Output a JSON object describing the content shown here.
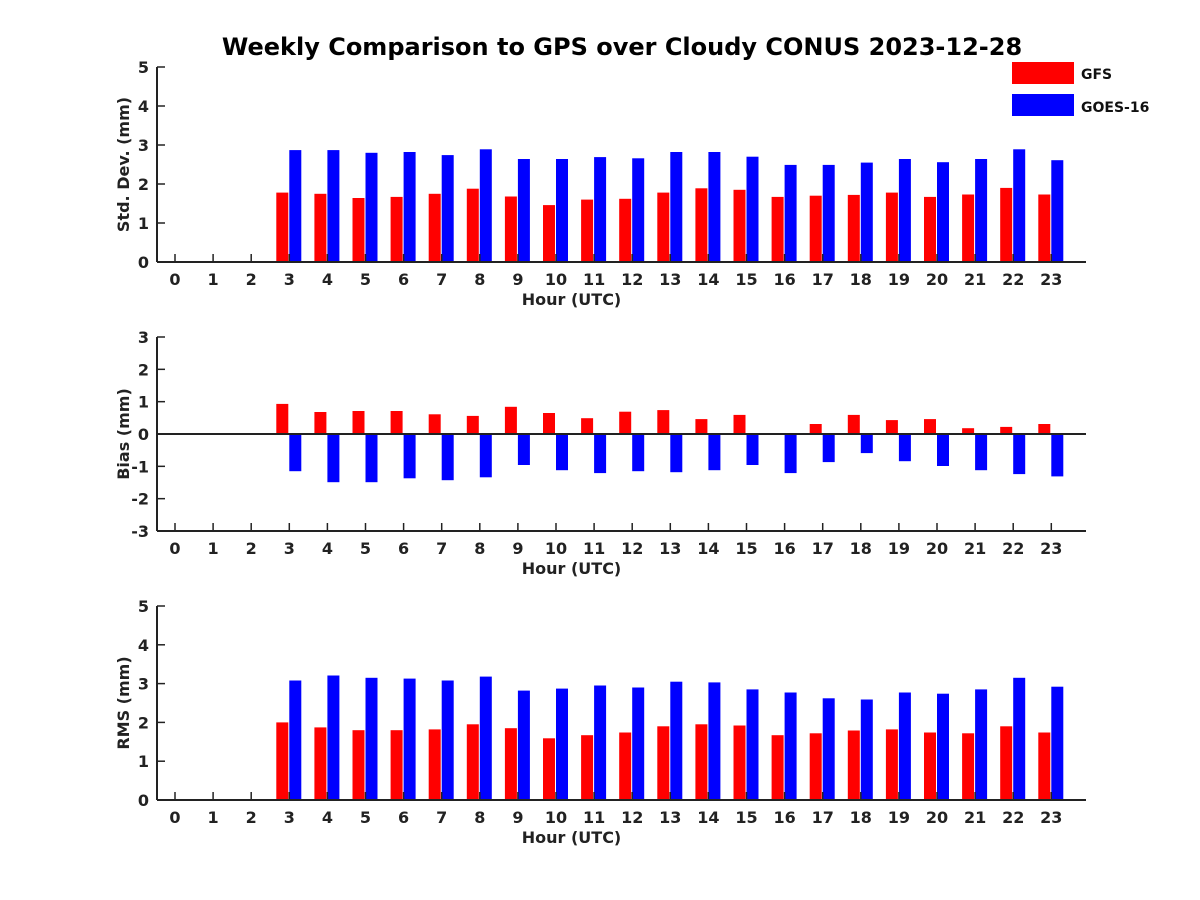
{
  "colors": {
    "GFS": "#ff0000",
    "GOES-16": "#0000ff",
    "axis": "#222222"
  },
  "chart_data": {
    "type": "bar",
    "title": "Weekly Comparison to GPS over Cloudy CONUS 2023-12-28",
    "legend": {
      "placement": "top-right",
      "entries": [
        "GFS",
        "GOES-16"
      ]
    },
    "categories": [
      "0",
      "1",
      "2",
      "3",
      "4",
      "5",
      "6",
      "7",
      "8",
      "9",
      "10",
      "11",
      "12",
      "13",
      "14",
      "15",
      "16",
      "17",
      "18",
      "19",
      "20",
      "21",
      "22",
      "23"
    ],
    "panels": [
      {
        "xlabel": "Hour (UTC)",
        "ylabel": "Std. Dev. (mm)",
        "ylim": [
          0,
          5
        ],
        "yticks": [
          "0",
          "1",
          "2",
          "3",
          "4",
          "5"
        ],
        "grid": false,
        "series": [
          {
            "name": "GFS",
            "values": [
              null,
              null,
              null,
              1.78,
              1.75,
              1.64,
              1.67,
              1.75,
              1.88,
              1.68,
              1.46,
              1.6,
              1.62,
              1.78,
              1.89,
              1.85,
              1.67,
              1.7,
              1.72,
              1.78,
              1.67,
              1.73,
              1.9,
              1.73
            ]
          },
          {
            "name": "GOES-16",
            "values": [
              null,
              null,
              null,
              2.87,
              2.87,
              2.8,
              2.82,
              2.74,
              2.89,
              2.64,
              2.64,
              2.69,
              2.66,
              2.82,
              2.82,
              2.7,
              2.49,
              2.49,
              2.55,
              2.64,
              2.56,
              2.64,
              2.89,
              2.61
            ]
          }
        ]
      },
      {
        "xlabel": "Hour (UTC)",
        "ylabel": "Bias (mm)",
        "ylim": [
          -3,
          3
        ],
        "yticks": [
          "-3",
          "-2",
          "-1",
          "0",
          "1",
          "2",
          "3"
        ],
        "grid": false,
        "series": [
          {
            "name": "GFS",
            "values": [
              null,
              null,
              null,
              0.93,
              0.68,
              0.71,
              0.71,
              0.61,
              0.56,
              0.84,
              0.65,
              0.49,
              0.69,
              0.74,
              0.46,
              0.59,
              0.0,
              0.31,
              0.59,
              0.43,
              0.46,
              0.18,
              0.22,
              0.31
            ]
          },
          {
            "name": "GOES-16",
            "values": [
              null,
              null,
              null,
              -1.15,
              -1.49,
              -1.49,
              -1.37,
              -1.43,
              -1.34,
              -0.96,
              -1.12,
              -1.21,
              -1.15,
              -1.18,
              -1.12,
              -0.96,
              -1.21,
              -0.87,
              -0.59,
              -0.84,
              -0.99,
              -1.12,
              -1.24,
              -1.31
            ]
          }
        ]
      },
      {
        "xlabel": "Hour (UTC)",
        "ylabel": "RMS (mm)",
        "ylim": [
          0,
          5
        ],
        "yticks": [
          "0",
          "1",
          "2",
          "3",
          "4",
          "5"
        ],
        "grid": false,
        "series": [
          {
            "name": "GFS",
            "values": [
              null,
              null,
              null,
              2.0,
              1.87,
              1.8,
              1.8,
              1.82,
              1.95,
              1.85,
              1.59,
              1.67,
              1.74,
              1.9,
              1.95,
              1.92,
              1.67,
              1.72,
              1.79,
              1.82,
              1.74,
              1.72,
              1.9,
              1.74
            ]
          },
          {
            "name": "GOES-16",
            "values": [
              null,
              null,
              null,
              3.08,
              3.21,
              3.15,
              3.13,
              3.08,
              3.18,
              2.82,
              2.87,
              2.95,
              2.9,
              3.05,
              3.03,
              2.85,
              2.77,
              2.62,
              2.59,
              2.77,
              2.74,
              2.85,
              3.15,
              2.92
            ]
          }
        ]
      }
    ]
  }
}
